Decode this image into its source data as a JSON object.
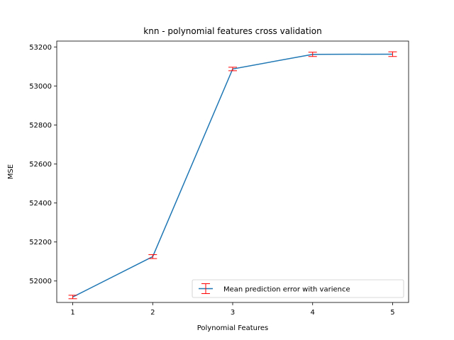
{
  "chart_data": {
    "type": "line",
    "title": "knn - polynomial features cross validation",
    "xlabel": "Polynomial Features",
    "ylabel": "MSE",
    "x": [
      1,
      2,
      3,
      4,
      5
    ],
    "xticks": [
      "1",
      "2",
      "3",
      "4",
      "5"
    ],
    "yticks": [
      "52000",
      "52200",
      "52400",
      "52600",
      "52800",
      "53000",
      "53200"
    ],
    "xlim": [
      0.8,
      5.2
    ],
    "ylim": [
      51890,
      53230
    ],
    "grid": false,
    "legend_position": "lower right",
    "series": [
      {
        "name": "Mean prediction error with varience",
        "values": [
          51918,
          52125,
          53087,
          53162,
          53163
        ],
        "errors": [
          9,
          10,
          9,
          11,
          12
        ],
        "line_color": "#1f77b4",
        "error_color": "#ff0000"
      }
    ]
  }
}
